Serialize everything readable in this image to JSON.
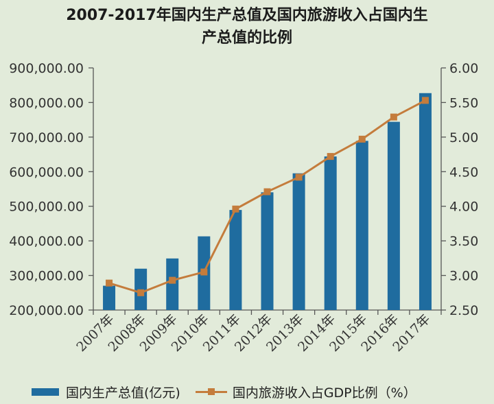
{
  "chart_data": {
    "type": "bar+line",
    "title_lines": [
      "2007-2017年国内生产总值及国内旅游收入占国内生",
      "产总值的比例"
    ],
    "categories": [
      "2007年",
      "2008年",
      "2009年",
      "2010年",
      "2011年",
      "2012年",
      "2013年",
      "2014年",
      "2015年",
      "2016年",
      "2017年"
    ],
    "series": [
      {
        "name": "国内生产总值(亿元)",
        "type": "bar",
        "axis": "left",
        "color": "#1f6c9f",
        "values": [
          270232,
          319516,
          349081,
          413030,
          489301,
          540367,
          595244,
          643974,
          689052,
          744127,
          827122
        ]
      },
      {
        "name": "国内旅游收入占GDP比例（%）",
        "type": "line",
        "axis": "right",
        "color": "#c47c3c",
        "values": [
          2.89,
          2.75,
          2.93,
          3.05,
          3.96,
          4.21,
          4.42,
          4.72,
          4.97,
          5.29,
          5.53
        ]
      }
    ],
    "y_left": {
      "min": 200000,
      "max": 900000,
      "ticks": [
        "200,000.00",
        "300,000.00",
        "400,000.00",
        "500,000.00",
        "600,000.00",
        "700,000.00",
        "800,000.00",
        "900,000.00"
      ],
      "tick_values": [
        200000,
        300000,
        400000,
        500000,
        600000,
        700000,
        800000,
        900000
      ]
    },
    "y_right": {
      "min": 2.5,
      "max": 6.0,
      "ticks": [
        "2.50",
        "3.00",
        "3.50",
        "4.00",
        "4.50",
        "5.00",
        "5.50",
        "6.00"
      ],
      "tick_values": [
        2.5,
        3.0,
        3.5,
        4.0,
        4.5,
        5.0,
        5.5,
        6.0
      ]
    },
    "legend_position": "bottom",
    "grid": false
  },
  "colors": {
    "background": "#e2ebda",
    "bar": "#1f6c9f",
    "line": "#c47c3c",
    "axis": "#555555"
  }
}
